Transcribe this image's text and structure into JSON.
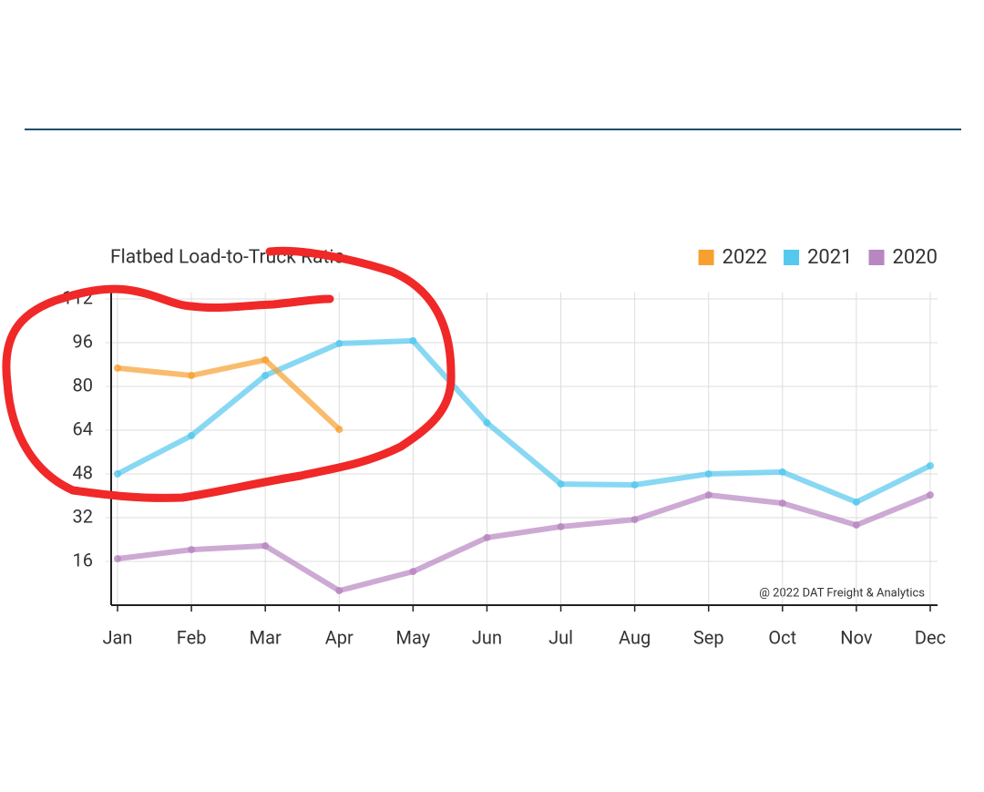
{
  "chart_data": {
    "type": "line",
    "title": "Flatbed Load-to-Truck Ratio",
    "annotation": "@ 2022 DAT Freight & Analytics",
    "categories": [
      "Jan",
      "Feb",
      "Mar",
      "Apr",
      "May",
      "Jun",
      "Jul",
      "Aug",
      "Sep",
      "Oct",
      "Nov",
      "Dec"
    ],
    "series": [
      {
        "name": "2022",
        "color": "#f7a030",
        "values": [
          86.7,
          84,
          89.7,
          64.3,
          null,
          null,
          null,
          null,
          null,
          null,
          null,
          null
        ]
      },
      {
        "name": "2021",
        "color": "#55c8ee",
        "values": [
          48,
          62,
          84,
          95.7,
          96.7,
          66.7,
          44.3,
          44,
          48,
          48.7,
          37.7,
          51
        ]
      },
      {
        "name": "2020",
        "color": "#b886c0",
        "values": [
          17,
          20.3,
          21.7,
          5.3,
          12.3,
          24.7,
          28.7,
          31.3,
          40.3,
          37.3,
          29.3,
          40.3
        ]
      }
    ],
    "ylim": [
      0,
      112
    ],
    "yticks": [
      16,
      32,
      48,
      64,
      80,
      96,
      112
    ],
    "grid": true,
    "legend": "top-right"
  }
}
